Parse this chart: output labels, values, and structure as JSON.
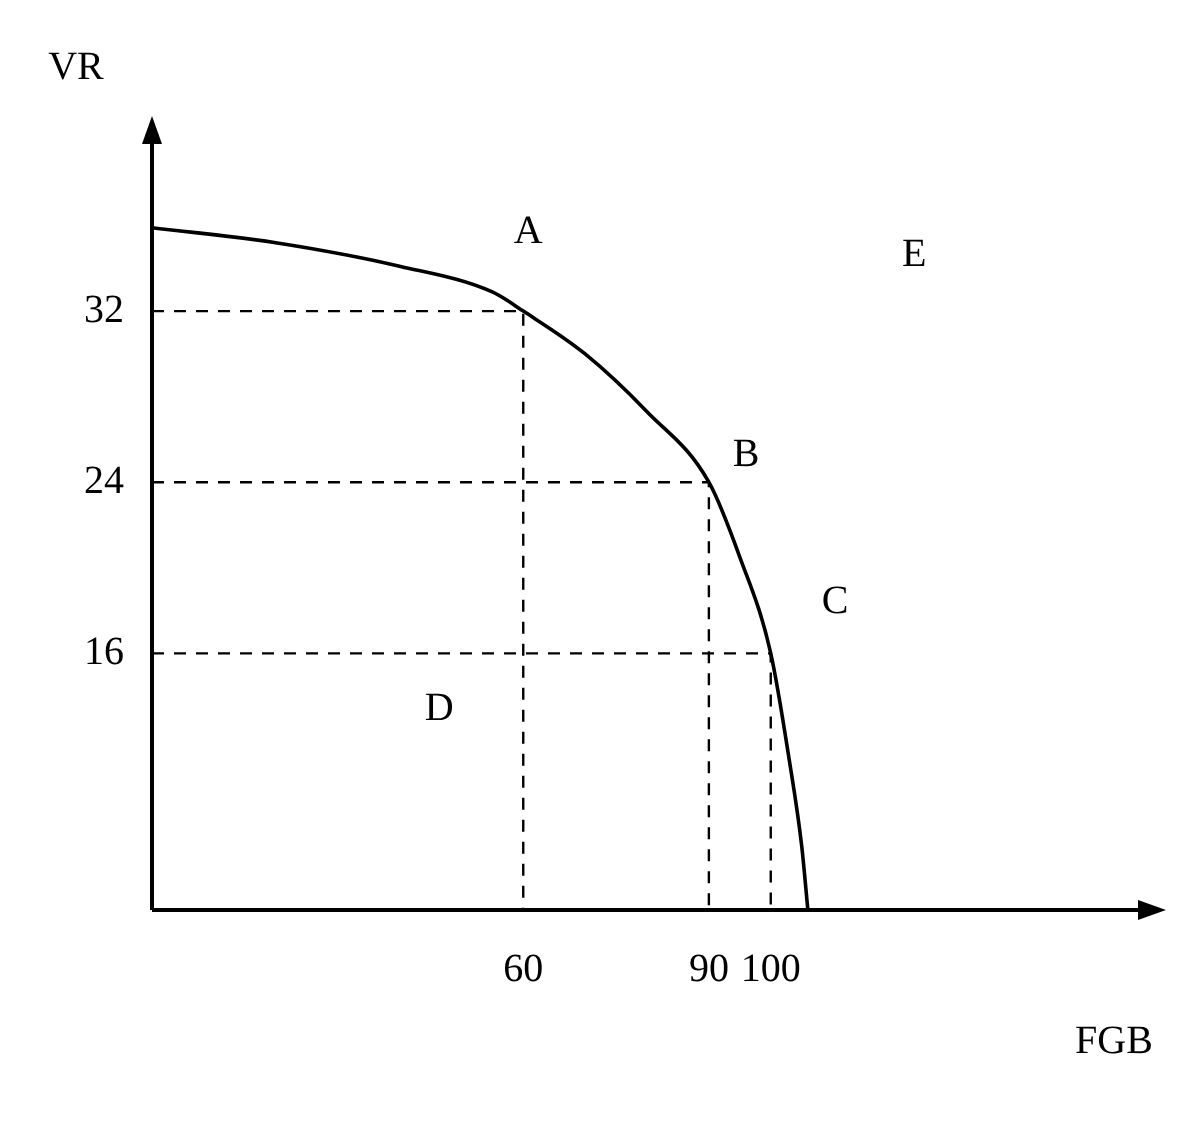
{
  "chart_data": {
    "type": "line",
    "xlabel": "FGB",
    "ylabel": "VR",
    "xlim": [
      0,
      160
    ],
    "ylim": [
      4,
      40
    ],
    "xticks": [
      60,
      90,
      100
    ],
    "yticks": [
      16,
      24,
      32
    ],
    "grid": false,
    "legend": false,
    "marker": "none",
    "series": [
      {
        "color": "#000000",
        "line_style": "solid",
        "x": [
          0,
          20,
          40,
          55,
          60,
          70,
          80,
          90,
          95,
          100,
          103,
          105,
          106
        ],
        "values": [
          35.9,
          35.2,
          34.1,
          32.9,
          32,
          30,
          27.3,
          24,
          20.5,
          16,
          11,
          7,
          4
        ]
      },
      {
        "color": "#000000",
        "line_style": "dashed",
        "x": [
          0,
          60,
          60
        ],
        "values": [
          32,
          32,
          4
        ]
      },
      {
        "color": "#000000",
        "line_style": "dashed",
        "x": [
          0,
          90,
          90
        ],
        "values": [
          24,
          24,
          4
        ]
      },
      {
        "color": "#000000",
        "line_style": "dashed",
        "x": [
          0,
          100,
          100
        ],
        "values": [
          16,
          16,
          4
        ]
      }
    ],
    "annotations": [
      "A",
      "B",
      "C",
      "D",
      "E"
    ]
  }
}
